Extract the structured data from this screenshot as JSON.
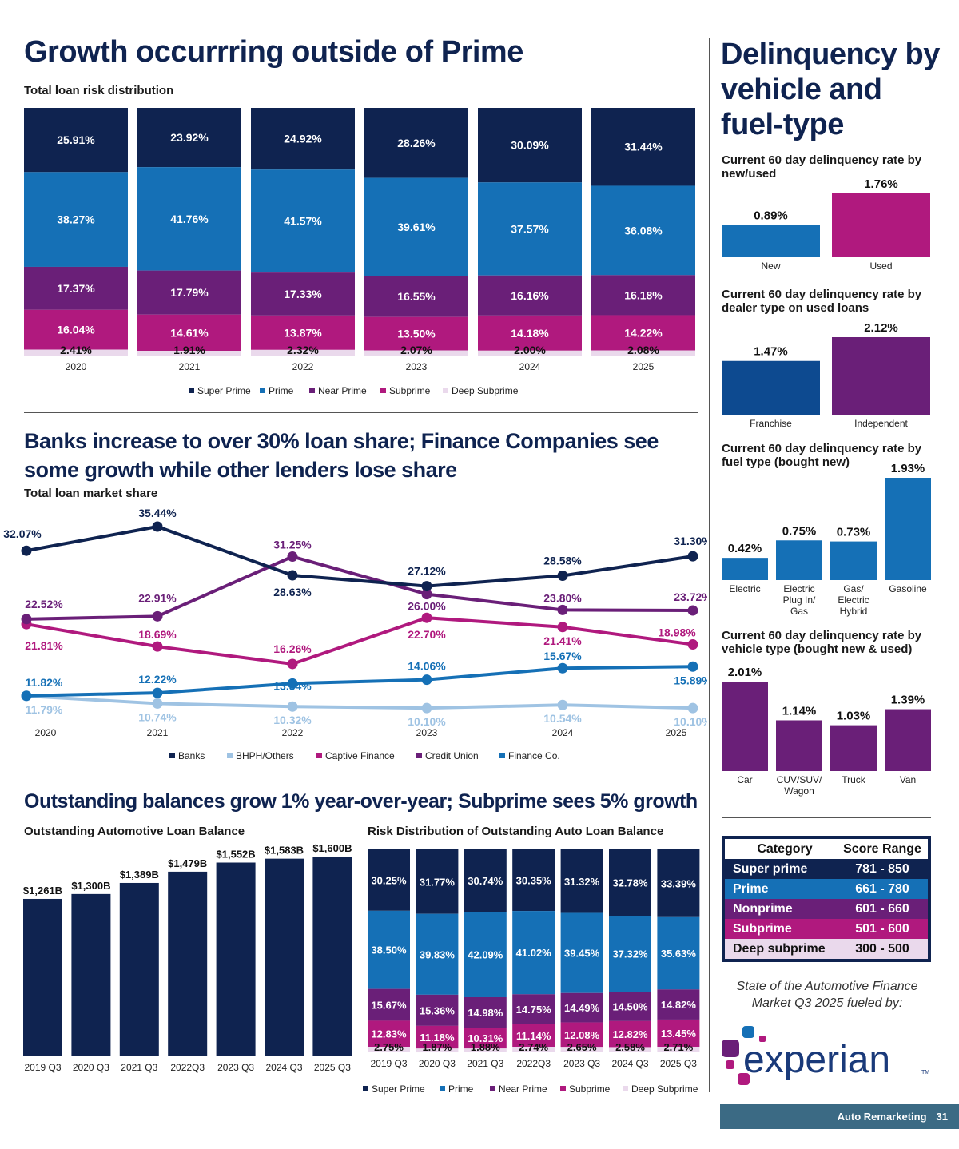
{
  "colors": {
    "super_prime": "#0f2350",
    "prime": "#1570b6",
    "near_prime": "#6a1f78",
    "subprime": "#b0197e",
    "deep_subprime": "#ead9ec",
    "bhph": "#9fc3e3",
    "franchise": "#0d4a90",
    "footer": "#3b6a84"
  },
  "section1": {
    "title": "Growth occurrring outside of Prime",
    "subtitle": "Total loan risk distribution"
  },
  "section2": {
    "title_line1": "Banks increase to over 30% loan share; Finance Companies see",
    "title_line2": "some growth while other lenders lose share",
    "subtitle": "Total loan market share"
  },
  "section3": {
    "title": "Outstanding balances grow 1% year-over-year; Subprime sees 5% growth",
    "left_subtitle": "Outstanding Automotive Loan Balance",
    "right_subtitle": "Risk Distribution of Outstanding Auto Loan Balance"
  },
  "sidebar": {
    "title_line1": "Delinquency by",
    "title_line2": "vehicle and",
    "title_line3": "fuel-type",
    "c1_title_line1": "Current 60 day delinquency rate by",
    "c1_title_line2": "new/used",
    "c2_title_line1": "Current 60 day delinquency rate by",
    "c2_title_line2": "dealer type on used loans",
    "c3_title_line1": "Current 60 day delinquency rate by",
    "c3_title_line2": "fuel type (bought new)",
    "c4_title_line1": "Current 60 day delinquency rate by",
    "c4_title_line2": "vehicle type (bought new & used)"
  },
  "score_table": {
    "headers": [
      "Category",
      "Score Range"
    ],
    "rows": [
      {
        "category": "Super prime",
        "range": "781 - 850"
      },
      {
        "category": "Prime",
        "range": "661 - 780"
      },
      {
        "category": "Nonprime",
        "range": "601 - 660"
      },
      {
        "category": "Subprime",
        "range": "501 - 600"
      },
      {
        "category": "Deep subprime",
        "range": "300 - 500"
      }
    ]
  },
  "tagline_line1": "State of the Automotive Finance",
  "tagline_line2": "Market Q3 2025 fueled by:",
  "logo": {
    "text": "experian",
    "tm": "TM"
  },
  "footer": {
    "publication": "Auto Remarketing",
    "page": "31"
  },
  "chart_data": [
    {
      "id": "risk_distribution",
      "type": "bar",
      "stacked": true,
      "title": "Total loan risk distribution",
      "categories": [
        "2020",
        "2021",
        "2022",
        "2023",
        "2024",
        "2025"
      ],
      "series": [
        {
          "name": "Super Prime",
          "values": [
            25.91,
            23.92,
            24.92,
            28.26,
            30.09,
            31.44
          ]
        },
        {
          "name": "Prime",
          "values": [
            38.27,
            41.76,
            41.57,
            39.61,
            37.57,
            36.08
          ]
        },
        {
          "name": "Near Prime",
          "values": [
            17.37,
            17.79,
            17.33,
            16.55,
            16.16,
            16.18
          ]
        },
        {
          "name": "Subprime",
          "values": [
            16.04,
            14.61,
            13.87,
            13.5,
            14.18,
            14.22
          ]
        },
        {
          "name": "Deep Subprime",
          "values": [
            2.41,
            1.91,
            2.32,
            2.07,
            2.0,
            2.08
          ]
        }
      ],
      "unit": "%",
      "legend": "bottom"
    },
    {
      "id": "market_share",
      "type": "line",
      "title": "Total loan market share",
      "x": [
        "2020",
        "2021",
        "2022",
        "2023",
        "2024",
        "2025"
      ],
      "series": [
        {
          "name": "Banks",
          "values": [
            32.07,
            35.44,
            28.63,
            27.12,
            28.58,
            31.3
          ]
        },
        {
          "name": "BHPH/Others",
          "values": [
            11.79,
            10.74,
            10.32,
            10.1,
            10.54,
            10.1
          ]
        },
        {
          "name": "Captive Finance",
          "values": [
            21.81,
            18.69,
            16.26,
            22.7,
            21.41,
            18.98
          ]
        },
        {
          "name": "Credit Union",
          "values": [
            22.52,
            22.91,
            31.25,
            26.0,
            23.8,
            23.72
          ]
        },
        {
          "name": "Finance Co.",
          "values": [
            11.82,
            12.22,
            13.54,
            14.06,
            15.67,
            15.89
          ]
        }
      ],
      "unit": "%",
      "legend": "bottom",
      "ylim": [
        8,
        37
      ]
    },
    {
      "id": "outstanding_balance",
      "type": "bar",
      "title": "Outstanding Automotive Loan Balance",
      "categories": [
        "2019 Q3",
        "2020 Q3",
        "2021 Q3",
        "2022Q3",
        "2023 Q3",
        "2024 Q3",
        "2025 Q3"
      ],
      "values": [
        1261,
        1300,
        1389,
        1479,
        1552,
        1583,
        1600
      ],
      "labels": [
        "$1,261B",
        "$1,300B",
        "$1,389B",
        "$1,479B",
        "$1,552B",
        "$1,583B",
        "$1,600B"
      ],
      "unit": "$B"
    },
    {
      "id": "outstanding_risk",
      "type": "bar",
      "stacked": true,
      "title": "Risk Distribution of Outstanding Auto Loan Balance",
      "categories": [
        "2019 Q3",
        "2020 Q3",
        "2021 Q3",
        "2022Q3",
        "2023 Q3",
        "2024 Q3",
        "2025 Q3"
      ],
      "series": [
        {
          "name": "Super Prime",
          "values": [
            30.25,
            31.77,
            30.74,
            30.35,
            31.32,
            32.78,
            33.39
          ]
        },
        {
          "name": "Prime",
          "values": [
            38.5,
            39.83,
            42.09,
            41.02,
            39.45,
            37.32,
            35.63
          ]
        },
        {
          "name": "Near Prime",
          "values": [
            15.67,
            15.36,
            14.98,
            14.75,
            14.49,
            14.5,
            14.82
          ]
        },
        {
          "name": "Subprime",
          "values": [
            12.83,
            11.18,
            10.31,
            11.14,
            12.08,
            12.82,
            13.45
          ]
        },
        {
          "name": "Deep Subprime",
          "values": [
            2.75,
            1.87,
            1.88,
            2.74,
            2.65,
            2.58,
            2.71
          ]
        }
      ],
      "unit": "%",
      "legend": "bottom"
    },
    {
      "id": "delinq_new_used",
      "type": "bar",
      "categories": [
        "New",
        "Used"
      ],
      "values": [
        0.89,
        1.76
      ],
      "unit": "%"
    },
    {
      "id": "delinq_dealer",
      "type": "bar",
      "categories": [
        "Franchise",
        "Independent"
      ],
      "values": [
        1.47,
        2.12
      ],
      "unit": "%"
    },
    {
      "id": "delinq_fuel",
      "type": "bar",
      "categories": [
        "Electric",
        "Electric Plug In/ Gas",
        "Gas/ Electric Hybrid",
        "Gasoline"
      ],
      "values": [
        0.42,
        0.75,
        0.73,
        1.93
      ],
      "unit": "%"
    },
    {
      "id": "delinq_vehicle",
      "type": "bar",
      "categories": [
        "Car",
        "CUV/SUV/ Wagon",
        "Truck",
        "Van"
      ],
      "values": [
        2.01,
        1.14,
        1.03,
        1.39
      ],
      "unit": "%"
    }
  ]
}
